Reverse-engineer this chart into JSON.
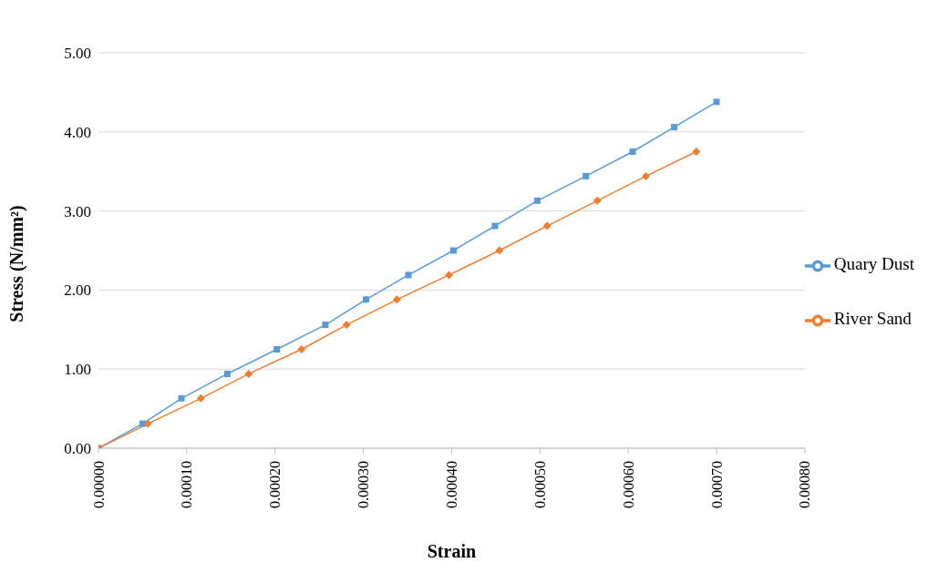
{
  "chart_data": {
    "type": "line",
    "xlabel": "Strain",
    "ylabel": "Stress  (N/mm²)",
    "xlim": [
      0,
      0.0008
    ],
    "xticks": [
      {
        "value": 0,
        "label": "0.00000"
      },
      {
        "value": 0.0001,
        "label": "0.00010"
      },
      {
        "value": 0.0002,
        "label": "0.00020"
      },
      {
        "value": 0.0003,
        "label": "0.00030"
      },
      {
        "value": 0.0004,
        "label": "0.00040"
      },
      {
        "value": 0.0005,
        "label": "0.00050"
      },
      {
        "value": 0.0006,
        "label": "0.00060"
      },
      {
        "value": 0.0007,
        "label": "0.00070"
      },
      {
        "value": 0.0008,
        "label": "0.00080"
      }
    ],
    "ylim": [
      0,
      5
    ],
    "yticks": [
      {
        "value": 0,
        "label": "0.00"
      },
      {
        "value": 1,
        "label": "1.00"
      },
      {
        "value": 2,
        "label": "2.00"
      },
      {
        "value": 3,
        "label": "3.00"
      },
      {
        "value": 4,
        "label": "4.00"
      },
      {
        "value": 5,
        "label": "5.00"
      }
    ],
    "grid": "y",
    "legend": "right",
    "line_style": "solid",
    "series": [
      {
        "name": "Quary Dust",
        "color": "#5b9bd5",
        "marker": "square",
        "x": [
          0,
          5e-05,
          9.4e-05,
          0.000146,
          0.000202,
          0.000257,
          0.000303,
          0.000351,
          0.000402,
          0.000449,
          0.000497,
          0.000552,
          0.000605,
          0.000652,
          0.0007
        ],
        "values": [
          0,
          0.31,
          0.63,
          0.94,
          1.25,
          1.56,
          1.88,
          2.19,
          2.5,
          2.81,
          3.13,
          3.44,
          3.75,
          4.06,
          4.38
        ]
      },
      {
        "name": "River Sand",
        "color": "#ed7d31",
        "marker": "diamond",
        "x": [
          0,
          5.6e-05,
          0.000116,
          0.00017,
          0.00023,
          0.000281,
          0.000338,
          0.000397,
          0.000454,
          0.000508,
          0.000565,
          0.00062,
          0.000677
        ],
        "values": [
          0,
          0.31,
          0.63,
          0.94,
          1.25,
          1.56,
          1.88,
          2.19,
          2.5,
          2.81,
          3.13,
          3.44,
          3.75
        ]
      }
    ]
  }
}
